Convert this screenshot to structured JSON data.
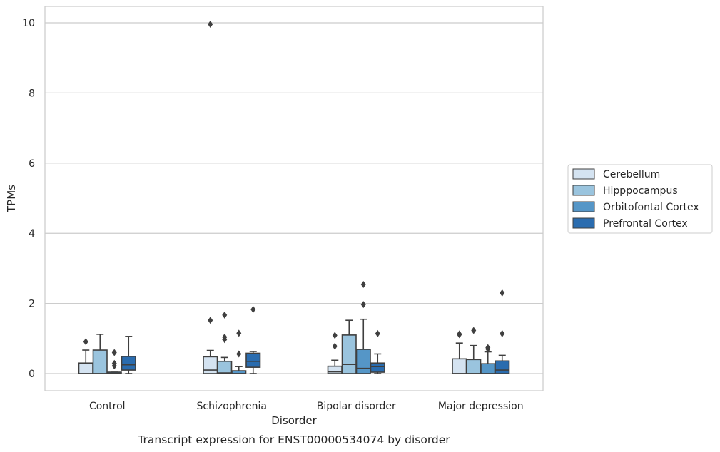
{
  "chart_data": {
    "type": "box",
    "caption": "Transcript expression for ENST00000534074 by disorder",
    "xlabel": "Disorder",
    "ylabel": "TPMs",
    "ylim": [
      -0.48,
      10.48
    ],
    "yticks": [
      0,
      2,
      4,
      6,
      8,
      10
    ],
    "grid": "horizontal",
    "legend_position": "right",
    "categories": [
      "Control",
      "Schizophrenia",
      "Bipolar disorder",
      "Major depression"
    ],
    "series": [
      {
        "name": "Cerebellum",
        "color": "#d4e3f1",
        "boxes": [
          {
            "q1": 0.0,
            "median": 0.0,
            "q3": 0.3,
            "whisker_low": 0.0,
            "whisker_high": 0.67,
            "outliers": [
              0.91
            ]
          },
          {
            "q1": 0.0,
            "median": 0.1,
            "q3": 0.48,
            "whisker_low": 0.0,
            "whisker_high": 0.66,
            "outliers": [
              1.52,
              9.96
            ]
          },
          {
            "q1": 0.0,
            "median": 0.05,
            "q3": 0.21,
            "whisker_low": 0.0,
            "whisker_high": 0.38,
            "outliers": [
              0.78,
              1.09
            ]
          },
          {
            "q1": 0.0,
            "median": 0.0,
            "q3": 0.42,
            "whisker_low": 0.0,
            "whisker_high": 0.87,
            "outliers": [
              1.11,
              1.13
            ]
          }
        ]
      },
      {
        "name": "Hipppocampus",
        "color": "#9ac4de",
        "boxes": [
          {
            "q1": 0.0,
            "median": 0.0,
            "q3": 0.67,
            "whisker_low": 0.0,
            "whisker_high": 1.12,
            "outliers": []
          },
          {
            "q1": 0.0,
            "median": 0.02,
            "q3": 0.35,
            "whisker_low": 0.0,
            "whisker_high": 0.46,
            "outliers": [
              0.97,
              1.04,
              1.67
            ]
          },
          {
            "q1": 0.0,
            "median": 0.26,
            "q3": 1.1,
            "whisker_low": 0.0,
            "whisker_high": 1.52,
            "outliers": []
          },
          {
            "q1": 0.0,
            "median": 0.0,
            "q3": 0.4,
            "whisker_low": 0.0,
            "whisker_high": 0.8,
            "outliers": [
              1.23
            ]
          }
        ]
      },
      {
        "name": "Orbitofontal Cortex",
        "color": "#5596c7",
        "boxes": [
          {
            "q1": 0.0,
            "median": 0.01,
            "q3": 0.04,
            "whisker_low": 0.0,
            "whisker_high": 0.04,
            "outliers": [
              0.22,
              0.29,
              0.6
            ]
          },
          {
            "q1": 0.0,
            "median": 0.0,
            "q3": 0.08,
            "whisker_low": 0.0,
            "whisker_high": 0.2,
            "outliers": [
              0.56,
              1.15
            ]
          },
          {
            "q1": 0.0,
            "median": 0.15,
            "q3": 0.69,
            "whisker_low": 0.0,
            "whisker_high": 1.55,
            "outliers": [
              1.97,
              2.54
            ]
          },
          {
            "q1": 0.0,
            "median": 0.0,
            "q3": 0.28,
            "whisker_low": 0.0,
            "whisker_high": 0.62,
            "outliers": [
              0.7,
              0.74
            ]
          }
        ]
      },
      {
        "name": "Prefrontal Cortex",
        "color": "#2a6caf",
        "boxes": [
          {
            "q1": 0.1,
            "median": 0.25,
            "q3": 0.49,
            "whisker_low": 0.0,
            "whisker_high": 1.06,
            "outliers": []
          },
          {
            "q1": 0.18,
            "median": 0.35,
            "q3": 0.58,
            "whisker_low": 0.0,
            "whisker_high": 0.63,
            "outliers": [
              1.83
            ]
          },
          {
            "q1": 0.04,
            "median": 0.2,
            "q3": 0.3,
            "whisker_low": 0.0,
            "whisker_high": 0.56,
            "outliers": [
              1.14
            ]
          },
          {
            "q1": 0.0,
            "median": 0.1,
            "q3": 0.36,
            "whisker_low": 0.0,
            "whisker_high": 0.52,
            "outliers": [
              1.14,
              2.3
            ]
          }
        ]
      }
    ]
  }
}
